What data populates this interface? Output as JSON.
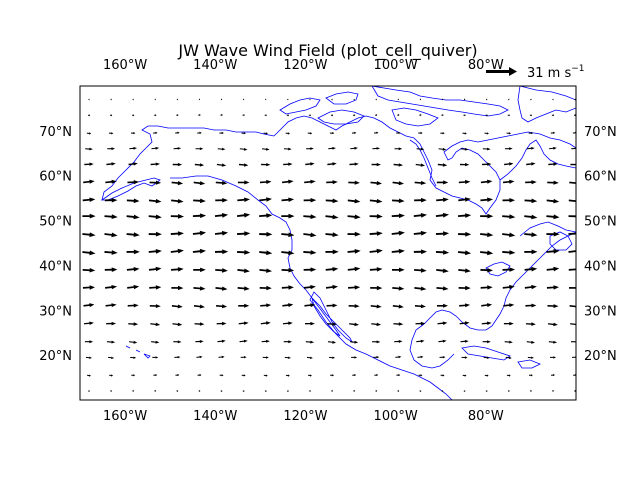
{
  "title": "JW Wave Wind Field (plot_cell_quiver)",
  "map": {
    "lon_range": [
      -170,
      -60
    ],
    "lat_range": [
      10,
      80
    ],
    "coastline_color": "#0000ff",
    "arrow_color": "#000000"
  },
  "axes": {
    "x_ticks": [
      {
        "value": -160,
        "label": "160°W"
      },
      {
        "value": -140,
        "label": "140°W"
      },
      {
        "value": -120,
        "label": "120°W"
      },
      {
        "value": -100,
        "label": "100°W"
      },
      {
        "value": -80,
        "label": "80°W"
      }
    ],
    "y_ticks": [
      {
        "value": 20,
        "label": "20°N"
      },
      {
        "value": 30,
        "label": "30°N"
      },
      {
        "value": 40,
        "label": "40°N"
      },
      {
        "value": 50,
        "label": "50°N"
      },
      {
        "value": 60,
        "label": "60°N"
      },
      {
        "value": 70,
        "label": "70°N"
      }
    ]
  },
  "quiver_key": {
    "speed": 31,
    "label_text": "31 m s",
    "label_exponent": "−1"
  },
  "chart_data": {
    "type": "quiver",
    "title": "JW Wave Wind Field (plot_cell_quiver)",
    "rows": [
      {
        "lat": 77.0,
        "speed": 2
      },
      {
        "lat": 73.5,
        "speed": 4
      },
      {
        "lat": 69.5,
        "speed": 8
      },
      {
        "lat": 66.0,
        "speed": 14
      },
      {
        "lat": 62.5,
        "speed": 17
      },
      {
        "lat": 58.5,
        "speed": 21
      },
      {
        "lat": 54.5,
        "speed": 23
      },
      {
        "lat": 51.0,
        "speed": 24
      },
      {
        "lat": 47.0,
        "speed": 24
      },
      {
        "lat": 43.0,
        "speed": 24
      },
      {
        "lat": 39.0,
        "speed": 23
      },
      {
        "lat": 35.0,
        "speed": 22
      },
      {
        "lat": 31.0,
        "speed": 20
      },
      {
        "lat": 27.0,
        "speed": 18
      },
      {
        "lat": 23.0,
        "speed": 15
      },
      {
        "lat": 19.5,
        "speed": 11
      },
      {
        "lat": 15.5,
        "speed": 7
      },
      {
        "lat": 12.0,
        "speed": 3
      }
    ],
    "columns_lon_start": -168,
    "columns_lon_step": 4.9,
    "columns_count": 23
  }
}
